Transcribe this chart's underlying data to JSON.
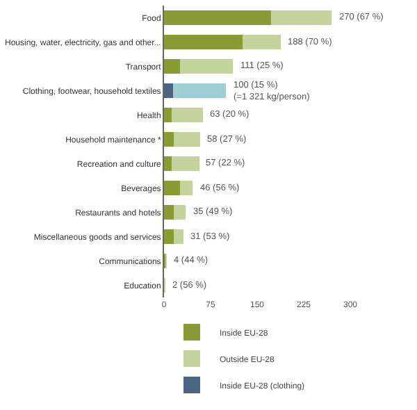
{
  "chart_data": {
    "type": "bar",
    "orientation": "horizontal",
    "stacked": true,
    "categories": [
      "Food",
      "Housing, water, electricity, gas and other...",
      "Transport",
      "Clothing, footwear, household textiles",
      "Health",
      "Household maintenance *",
      "Recreation and culture",
      "Beverages",
      "Restaurants and hotels",
      "Miscellaneous goods and services",
      "Communications",
      "Education"
    ],
    "series": [
      {
        "name": "Inside EU-28",
        "color": "#8a9a35",
        "values": [
          172,
          126,
          26,
          null,
          12,
          16,
          12,
          26,
          16,
          16,
          3,
          1
        ]
      },
      {
        "name": "Outside EU-28",
        "color": "#c3d39b",
        "values": [
          98,
          62,
          85,
          null,
          51,
          42,
          45,
          20,
          19,
          15,
          1,
          1
        ]
      },
      {
        "name": "Inside EU-28 (clothing)",
        "color": "#4d6584",
        "values": [
          null,
          null,
          null,
          14,
          null,
          null,
          null,
          null,
          null,
          null,
          null,
          null
        ]
      },
      {
        "color": "#9fcfd0",
        "values": [
          null,
          null,
          null,
          86,
          null,
          null,
          null,
          null,
          null,
          null,
          null,
          null
        ]
      }
    ],
    "totals": [
      "270 (67 %)",
      "188 (70 %)",
      "111 (25 %)",
      "100 (15 %)\n(=1 321 kg/person)",
      "63 (20 %)",
      "58 (27 %)",
      "57 (22 %)",
      "46 (56 %)",
      "35 (49 %)",
      "31 (53 %)",
      "4 (44 %)",
      "2 (56 %)"
    ],
    "xlim": [
      0,
      300
    ],
    "xticks": [
      0,
      75,
      150,
      225,
      300
    ],
    "legend": "bottom"
  }
}
